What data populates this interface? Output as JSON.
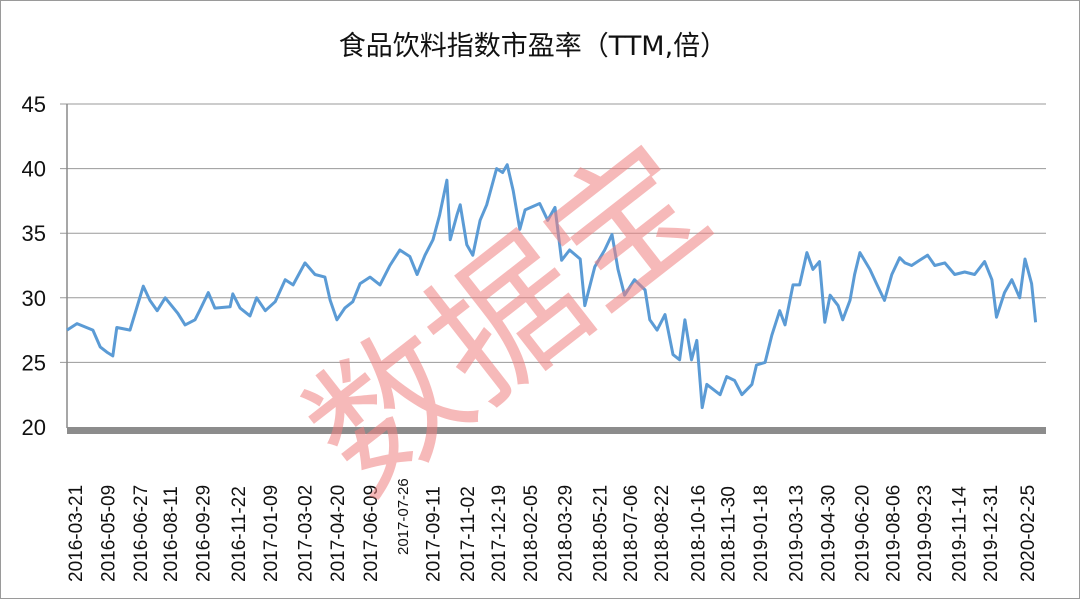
{
  "chart_data": {
    "type": "line",
    "title": "食品饮料指数市盈率（TTM,倍）",
    "xlabel": "",
    "ylabel": "",
    "ylim": [
      20,
      45
    ],
    "yticks": [
      20,
      25,
      30,
      35,
      40,
      45
    ],
    "grid": true,
    "legend": "none",
    "line_color": "#5b9bd5",
    "axis_bar_color": "#8c8c8c",
    "xticks": [
      "2016-03-21",
      "2016-05-09",
      "2016-06-27",
      "2016-08-11",
      "2016-09-29",
      "2016-11-22",
      "2017-01-09",
      "2017-03-02",
      "2017-04-20",
      "2017-06-09",
      "2017-07-26",
      "2017-09-11",
      "2017-11-02",
      "2017-12-19",
      "2018-02-05",
      "2018-03-29",
      "2018-05-21",
      "2018-07-06",
      "2018-08-22",
      "2018-10-16",
      "2018-11-30",
      "2019-01-18",
      "2019-03-13",
      "2019-04-30",
      "2019-06-20",
      "2019-08-06",
      "2019-09-23",
      "2019-11-14",
      "2019-12-31",
      "2020-02-25"
    ],
    "small_xticks": [
      "2017-07-26"
    ],
    "series": [
      {
        "points": [
          [
            "2016-03-09",
            27.5
          ],
          [
            "2016-03-24",
            28.0
          ],
          [
            "2016-04-17",
            27.5
          ],
          [
            "2016-04-28",
            26.2
          ],
          [
            "2016-05-08",
            25.8
          ],
          [
            "2016-05-17",
            25.5
          ],
          [
            "2016-05-23",
            27.7
          ],
          [
            "2016-06-12",
            27.5
          ],
          [
            "2016-07-02",
            30.9
          ],
          [
            "2016-07-12",
            29.8
          ],
          [
            "2016-07-23",
            29.0
          ],
          [
            "2016-08-04",
            30.0
          ],
          [
            "2016-08-23",
            28.8
          ],
          [
            "2016-09-03",
            27.9
          ],
          [
            "2016-09-18",
            28.3
          ],
          [
            "2016-09-25",
            29.0
          ],
          [
            "2016-10-08",
            30.4
          ],
          [
            "2016-10-18",
            29.2
          ],
          [
            "2016-11-10",
            29.3
          ],
          [
            "2016-11-14",
            30.3
          ],
          [
            "2016-11-25",
            29.2
          ],
          [
            "2016-12-10",
            28.6
          ],
          [
            "2016-12-20",
            30.0
          ],
          [
            "2017-01-02",
            29.0
          ],
          [
            "2017-01-17",
            29.7
          ],
          [
            "2017-02-01",
            31.4
          ],
          [
            "2017-02-13",
            31.0
          ],
          [
            "2017-03-03",
            32.7
          ],
          [
            "2017-03-18",
            31.8
          ],
          [
            "2017-04-02",
            31.6
          ],
          [
            "2017-04-10",
            29.8
          ],
          [
            "2017-04-20",
            28.3
          ],
          [
            "2017-05-02",
            29.2
          ],
          [
            "2017-05-14",
            29.7
          ],
          [
            "2017-05-25",
            31.1
          ],
          [
            "2017-06-09",
            31.6
          ],
          [
            "2017-06-24",
            31.0
          ],
          [
            "2017-07-09",
            32.5
          ],
          [
            "2017-07-24",
            33.7
          ],
          [
            "2017-08-08",
            33.2
          ],
          [
            "2017-08-19",
            31.8
          ],
          [
            "2017-08-31",
            33.3
          ],
          [
            "2017-09-12",
            34.5
          ],
          [
            "2017-09-22",
            36.4
          ],
          [
            "2017-10-03",
            39.1
          ],
          [
            "2017-10-08",
            34.5
          ],
          [
            "2017-10-18",
            36.4
          ],
          [
            "2017-10-23",
            37.2
          ],
          [
            "2017-11-02",
            34.1
          ],
          [
            "2017-11-11",
            33.3
          ],
          [
            "2017-11-22",
            36.0
          ],
          [
            "2017-12-02",
            37.2
          ],
          [
            "2017-12-17",
            40.0
          ],
          [
            "2017-12-26",
            39.7
          ],
          [
            "2018-01-02",
            40.3
          ],
          [
            "2018-01-11",
            38.3
          ],
          [
            "2018-01-21",
            35.3
          ],
          [
            "2018-01-29",
            36.8
          ],
          [
            "2018-02-20",
            37.3
          ],
          [
            "2018-03-04",
            36.0
          ],
          [
            "2018-03-15",
            37.0
          ],
          [
            "2018-03-25",
            32.9
          ],
          [
            "2018-04-06",
            33.7
          ],
          [
            "2018-04-22",
            33.0
          ],
          [
            "2018-04-29",
            29.4
          ],
          [
            "2018-05-14",
            32.4
          ],
          [
            "2018-05-29",
            33.7
          ],
          [
            "2018-06-09",
            34.9
          ],
          [
            "2018-06-18",
            32.2
          ],
          [
            "2018-06-28",
            30.2
          ],
          [
            "2018-07-13",
            31.4
          ],
          [
            "2018-07-29",
            30.6
          ],
          [
            "2018-08-05",
            28.3
          ],
          [
            "2018-08-16",
            27.5
          ],
          [
            "2018-08-28",
            28.7
          ],
          [
            "2018-09-09",
            25.6
          ],
          [
            "2018-09-19",
            25.2
          ],
          [
            "2018-09-27",
            28.3
          ],
          [
            "2018-10-07",
            25.2
          ],
          [
            "2018-10-15",
            26.7
          ],
          [
            "2018-10-23",
            21.5
          ],
          [
            "2018-10-30",
            23.3
          ],
          [
            "2018-11-19",
            22.5
          ],
          [
            "2018-11-29",
            23.9
          ],
          [
            "2018-12-11",
            23.6
          ],
          [
            "2018-12-22",
            22.5
          ],
          [
            "2019-01-06",
            23.3
          ],
          [
            "2019-01-13",
            24.8
          ],
          [
            "2019-01-26",
            25.0
          ],
          [
            "2019-02-05",
            27.1
          ],
          [
            "2019-02-17",
            29.0
          ],
          [
            "2019-02-25",
            27.9
          ],
          [
            "2019-03-09",
            31.0
          ],
          [
            "2019-03-19",
            31.0
          ],
          [
            "2019-03-30",
            33.5
          ],
          [
            "2019-04-08",
            32.2
          ],
          [
            "2019-04-18",
            32.8
          ],
          [
            "2019-04-26",
            28.1
          ],
          [
            "2019-05-04",
            30.2
          ],
          [
            "2019-05-16",
            29.4
          ],
          [
            "2019-05-23",
            28.3
          ],
          [
            "2019-06-03",
            29.8
          ],
          [
            "2019-06-10",
            31.8
          ],
          [
            "2019-06-18",
            33.5
          ],
          [
            "2019-07-03",
            32.2
          ],
          [
            "2019-07-13",
            31.1
          ],
          [
            "2019-07-25",
            29.8
          ],
          [
            "2019-08-05",
            31.8
          ],
          [
            "2019-08-17",
            33.1
          ],
          [
            "2019-08-25",
            32.7
          ],
          [
            "2019-09-04",
            32.5
          ],
          [
            "2019-09-16",
            32.9
          ],
          [
            "2019-09-28",
            33.3
          ],
          [
            "2019-10-09",
            32.5
          ],
          [
            "2019-10-24",
            32.7
          ],
          [
            "2019-11-08",
            31.8
          ],
          [
            "2019-11-23",
            32.0
          ],
          [
            "2019-12-08",
            31.8
          ],
          [
            "2019-12-23",
            32.8
          ],
          [
            "2020-01-03",
            31.4
          ],
          [
            "2020-01-10",
            28.5
          ],
          [
            "2020-01-22",
            30.4
          ],
          [
            "2020-02-02",
            31.4
          ],
          [
            "2020-02-14",
            30.0
          ],
          [
            "2020-02-22",
            33.0
          ],
          [
            "2020-03-03",
            31.1
          ],
          [
            "2020-03-09",
            28.1
          ]
        ]
      }
    ]
  },
  "watermark": {
    "text": "数据宝",
    "color": "#f08080"
  }
}
